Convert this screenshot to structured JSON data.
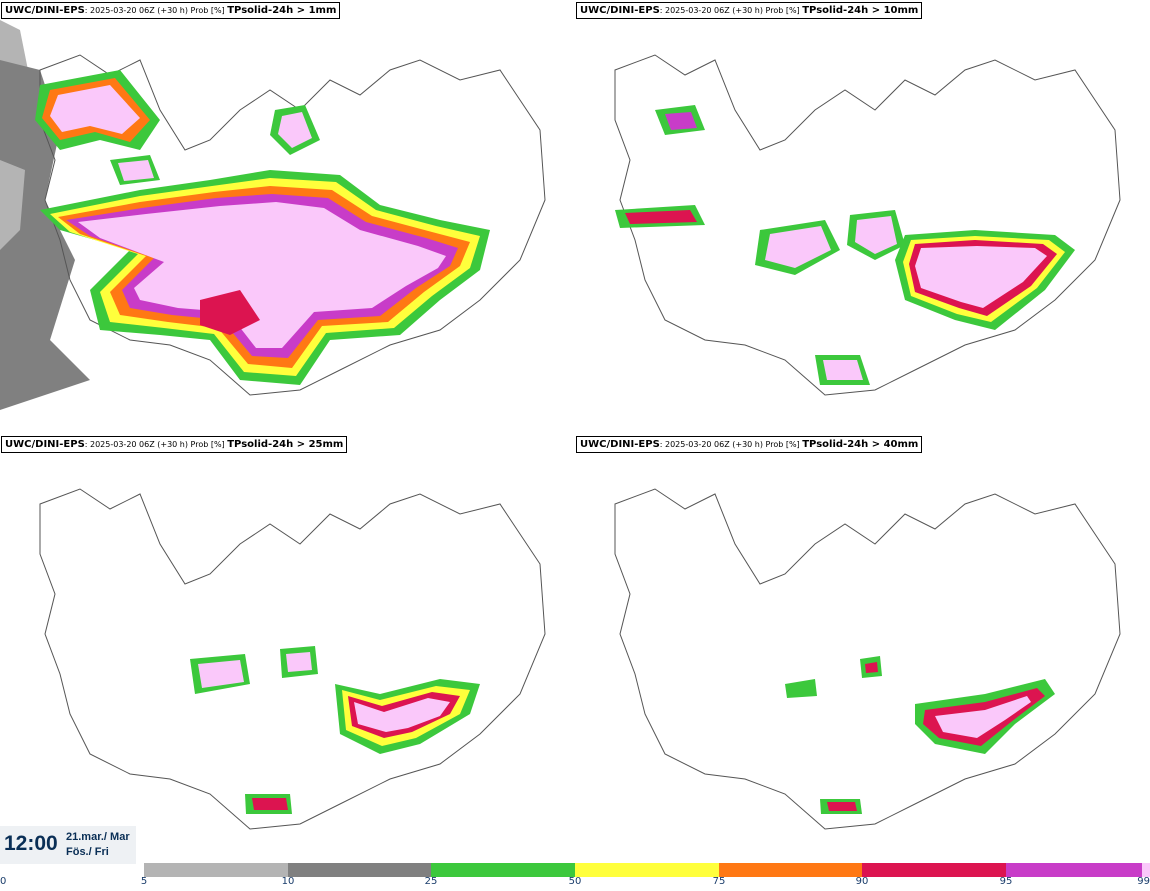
{
  "panels": [
    {
      "model": "UWC/DINI-EPS",
      "meta": ": 2025-03-20 06Z (+30 h) Prob [%] ",
      "param": "TPsolid-24h > 1mm"
    },
    {
      "model": "UWC/DINI-EPS",
      "meta": ": 2025-03-20 06Z (+30 h) Prob [%] ",
      "param": "TPsolid-24h > 10mm"
    },
    {
      "model": "UWC/DINI-EPS",
      "meta": ": 2025-03-20 06Z (+30 h) Prob [%] ",
      "param": "TPsolid-24h > 25mm"
    },
    {
      "model": "UWC/DINI-EPS",
      "meta": ": 2025-03-20 06Z (+30 h) Prob [%] ",
      "param": "TPsolid-24h > 40mm"
    }
  ],
  "valid_time": {
    "clock": "12:00",
    "date_line1": "21.mar./ Mar",
    "date_line2": "Fös./ Fri"
  },
  "legend": {
    "ticks": [
      "0",
      "5",
      "10",
      "25",
      "50",
      "75",
      "90",
      "95",
      "99"
    ],
    "colors": [
      "#b4b4b4",
      "#808080",
      "#3cc83c",
      "#ffff3c",
      "#ff7814",
      "#dc1450",
      "#c83cc8",
      "#fac8fa"
    ]
  }
}
